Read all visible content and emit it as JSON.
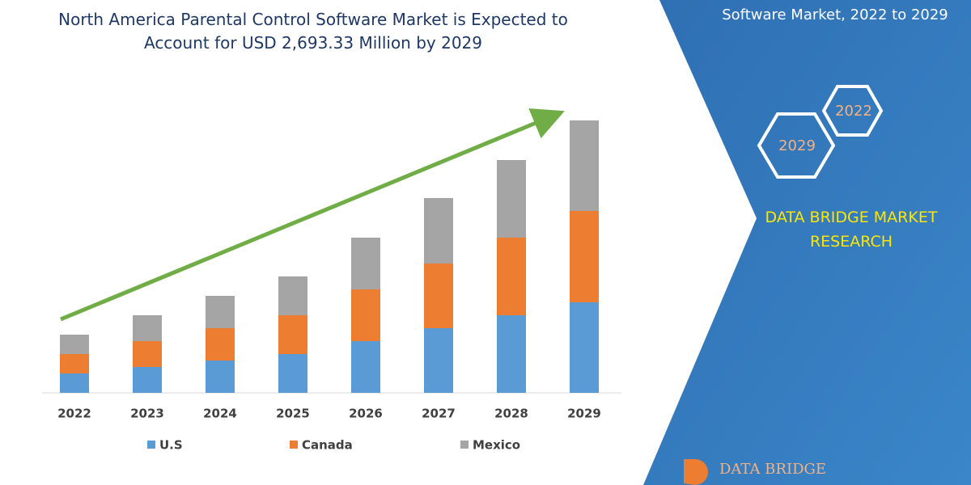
{
  "chart_data": {
    "type": "stacked_bar",
    "title": "North America Parental Control Software Market is Expected to Account for USD 2,693.33 Million by 2029",
    "categories": [
      "2022",
      "2023",
      "2024",
      "2025",
      "2026",
      "2027",
      "2028",
      "2029"
    ],
    "series": [
      {
        "name": "U.S",
        "color": "#5b9bd5",
        "values": [
          24,
          32,
          40,
          48,
          64,
          80,
          96,
          112
        ]
      },
      {
        "name": "Canada",
        "color": "#ed7d31",
        "values": [
          24,
          32,
          40,
          48,
          64,
          80,
          96,
          113
        ]
      },
      {
        "name": "Mexico",
        "color": "#a5a5a5",
        "values": [
          24,
          32,
          40,
          48,
          64,
          81,
          96,
          112
        ]
      }
    ],
    "ylim": [
      0,
      340
    ]
  },
  "side_panel": {
    "subtitle": "Software Market, 2022 to 2029",
    "hexagons": [
      "2022",
      "2029"
    ],
    "brand": "DATA BRIDGE MARKET RESEARCH"
  },
  "logo": "DATA BRIDGE"
}
